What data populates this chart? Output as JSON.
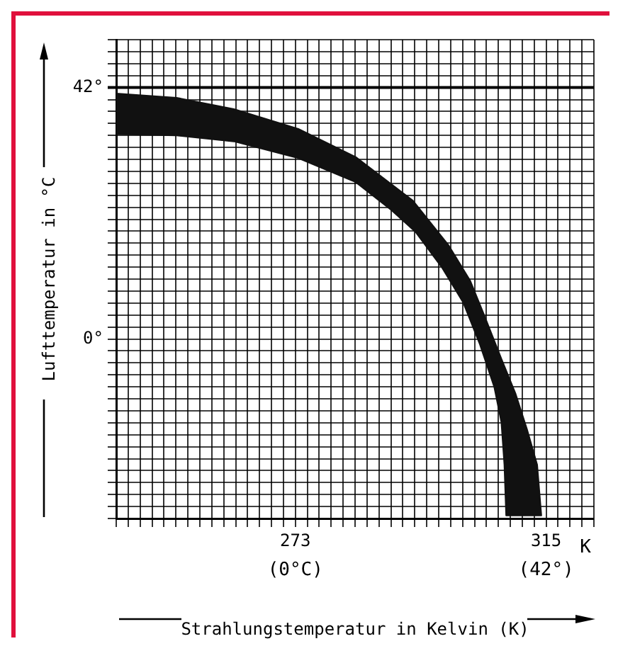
{
  "chart_data": {
    "type": "area",
    "xlabel": "Strahlungstemperatur in Kelvin (K)",
    "ylabel": "Lufttemperatur in °C",
    "annotations": [
      "(0°C)",
      "(42°)",
      "K"
    ],
    "xlim": [
      243,
      323
    ],
    "ylim": [
      -30,
      50
    ],
    "xticks": [
      {
        "value": 243,
        "label": null
      },
      {
        "value": 245,
        "label": null
      },
      {
        "value": 247,
        "label": null
      },
      {
        "value": 249,
        "label": null
      },
      {
        "value": 251,
        "label": null
      },
      {
        "value": 253,
        "label": null
      },
      {
        "value": 255,
        "label": null
      },
      {
        "value": 257,
        "label": null
      },
      {
        "value": 259,
        "label": null
      },
      {
        "value": 261,
        "label": null
      },
      {
        "value": 263,
        "label": null
      },
      {
        "value": 265,
        "label": null
      },
      {
        "value": 267,
        "label": null
      },
      {
        "value": 269,
        "label": null
      },
      {
        "value": 271,
        "label": null
      },
      273,
      {
        "value": 275,
        "label": null
      },
      {
        "value": 277,
        "label": null
      },
      {
        "value": 279,
        "label": null
      },
      {
        "value": 281,
        "label": null
      },
      {
        "value": 283,
        "label": null
      },
      {
        "value": 285,
        "label": null
      },
      {
        "value": 287,
        "label": null
      },
      {
        "value": 289,
        "label": null
      },
      {
        "value": 291,
        "label": null
      },
      {
        "value": 293,
        "label": null
      },
      {
        "value": 295,
        "label": null
      },
      {
        "value": 297,
        "label": null
      },
      {
        "value": 299,
        "label": null
      },
      {
        "value": 301,
        "label": null
      },
      {
        "value": 303,
        "label": null
      },
      {
        "value": 305,
        "label": null
      },
      {
        "value": 307,
        "label": null
      },
      {
        "value": 309,
        "label": null
      },
      {
        "value": 311,
        "label": null
      },
      {
        "value": 313,
        "label": null
      },
      315,
      {
        "value": 317,
        "label": null
      },
      {
        "value": 319,
        "label": null
      },
      {
        "value": 321,
        "label": null
      },
      {
        "value": 323,
        "label": null
      }
    ],
    "yticks": [
      {
        "value": -30,
        "label": null
      },
      {
        "value": -28,
        "label": null
      },
      {
        "value": -26,
        "label": null
      },
      {
        "value": -24,
        "label": null
      },
      {
        "value": -22,
        "label": null
      },
      {
        "value": -20,
        "label": null
      },
      {
        "value": -18,
        "label": null
      },
      {
        "value": -16,
        "label": null
      },
      {
        "value": -14,
        "label": null
      },
      {
        "value": -12,
        "label": null
      },
      {
        "value": -10,
        "label": null
      },
      {
        "value": -8,
        "label": null
      },
      {
        "value": -6,
        "label": null
      },
      {
        "value": -4,
        "label": null
      },
      {
        "value": -2,
        "label": null
      },
      {
        "value": 0,
        "label": "0°"
      },
      {
        "value": 2,
        "label": null
      },
      {
        "value": 4,
        "label": null
      },
      {
        "value": 6,
        "label": null
      },
      {
        "value": 8,
        "label": null
      },
      {
        "value": 10,
        "label": null
      },
      {
        "value": 12,
        "label": null
      },
      {
        "value": 14,
        "label": null
      },
      {
        "value": 16,
        "label": null
      },
      {
        "value": 18,
        "label": null
      },
      {
        "value": 20,
        "label": null
      },
      {
        "value": 22,
        "label": null
      },
      {
        "value": 24,
        "label": null
      },
      {
        "value": 26,
        "label": null
      },
      {
        "value": 28,
        "label": null
      },
      {
        "value": 30,
        "label": null
      },
      {
        "value": 32,
        "label": null
      },
      {
        "value": 34,
        "label": null
      },
      {
        "value": 36,
        "label": null
      },
      {
        "value": 38,
        "label": null
      },
      {
        "value": 40,
        "label": null
      },
      {
        "value": 42,
        "label": "42°"
      },
      {
        "value": 44,
        "label": null
      },
      {
        "value": 46,
        "label": null
      },
      {
        "value": 48,
        "label": null
      },
      {
        "value": 50,
        "label": null
      }
    ],
    "grid": true,
    "ref_lines": [
      {
        "axis": "y",
        "value": 42,
        "color": "#000000"
      }
    ],
    "series": [
      {
        "color": "#111111",
        "x": [
          243,
          253.1,
          262.7,
          273.5,
          283.1,
          292.7,
          298.7,
          302.3,
          304.7,
          307.5,
          309.9,
          311.8,
          313.5,
          314.2,
          308.3,
          308.0,
          307.5,
          306.3,
          303.9,
          301.1,
          297.5,
          293.1,
          289.1,
          283.1,
          273.5,
          262.7,
          253.1,
          243,
          243
        ],
        "values": [
          41.0,
          40.3,
          38.4,
          35.1,
          30.4,
          23.1,
          15.6,
          9.7,
          3.8,
          -3.3,
          -9.2,
          -15.1,
          -21.0,
          -29.5,
          -29.5,
          -21.0,
          -13.9,
          -8.0,
          -0.9,
          6.1,
          12.0,
          17.9,
          21.5,
          26.2,
          30.2,
          33.0,
          34.0,
          34.2,
          41.0
        ]
      }
    ]
  }
}
